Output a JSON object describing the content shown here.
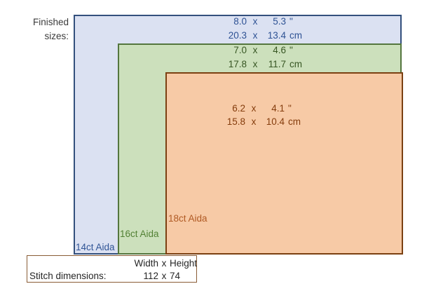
{
  "finished_sizes_label": {
    "line1": "Finished",
    "line2": "sizes:"
  },
  "fabrics": [
    {
      "name": "14ct Aida",
      "size_in": {
        "w": "8.0",
        "sep": "x",
        "h": "5.3",
        "unit": "\""
      },
      "size_cm": {
        "w": "20.3",
        "sep": "x",
        "h": "13.4",
        "unit": "cm"
      },
      "fill": "#dbe1f2",
      "border": "#33507d",
      "size_text_color": "#2e5294",
      "name_color": "#305496"
    },
    {
      "name": "16ct Aida",
      "size_in": {
        "w": "7.0",
        "sep": "x",
        "h": "4.6",
        "unit": "\""
      },
      "size_cm": {
        "w": "17.8",
        "sep": "x",
        "h": "11.7",
        "unit": "cm"
      },
      "fill": "#cce0bc",
      "border": "#54763e",
      "size_text_color": "#375623",
      "name_color": "#538135"
    },
    {
      "name": "18ct Aida",
      "size_in": {
        "w": "6.2",
        "sep": "x",
        "h": "4.1",
        "unit": "\""
      },
      "size_cm": {
        "w": "15.8",
        "sep": "x",
        "h": "10.4",
        "unit": "cm"
      },
      "fill": "#f7caa6",
      "border": "#7b4012",
      "size_text_color": "#843c0c",
      "name_color": "#b05a24"
    }
  ],
  "stitch_dimensions": {
    "header_width": "Width",
    "header_sep": "x",
    "header_height": "Height",
    "label": "Stitch dimensions:",
    "width_value": "112",
    "sep": "x",
    "height_value": "74"
  }
}
